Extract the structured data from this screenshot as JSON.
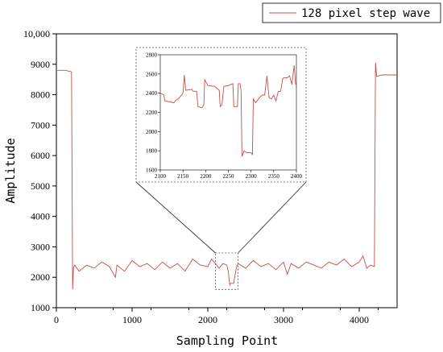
{
  "chart_data": {
    "type": "line",
    "title": "",
    "xlabel": "Sampling Point",
    "ylabel": "Amplitude",
    "xlim": [
      0,
      4500
    ],
    "ylim": [
      1000,
      10000
    ],
    "x_ticks": [
      0,
      1000,
      2000,
      3000,
      4000
    ],
    "x_tick_labels": [
      "0",
      "1000",
      "2000",
      "3000",
      "4000"
    ],
    "y_ticks": [
      1000,
      2000,
      3000,
      4000,
      5000,
      6000,
      7000,
      8000,
      9000,
      10000
    ],
    "y_tick_labels": [
      "1000",
      "2000",
      "3000",
      "4000",
      "5000",
      "6000",
      "7000",
      "8000",
      "9000",
      "10,000"
    ],
    "grid": false,
    "legend_position": "top-right",
    "series": [
      {
        "name": "128 pixel step wave",
        "color": "#c0504d",
        "x": [
          0,
          120,
          200,
          215,
          225,
          240,
          300,
          400,
          500,
          600,
          700,
          780,
          800,
          900,
          1000,
          1100,
          1200,
          1300,
          1400,
          1500,
          1600,
          1700,
          1800,
          1900,
          2000,
          2050,
          2100,
          2150,
          2200,
          2250,
          2270,
          2290,
          2300,
          2340,
          2380,
          2400,
          2500,
          2600,
          2700,
          2800,
          2900,
          3000,
          3050,
          3100,
          3200,
          3300,
          3400,
          3500,
          3600,
          3700,
          3800,
          3900,
          4000,
          4050,
          4100,
          4150,
          4200,
          4215,
          4230,
          4300,
          4400,
          4500
        ],
        "y": [
          8800,
          8800,
          8750,
          1600,
          2300,
          2400,
          2200,
          2400,
          2300,
          2500,
          2350,
          2000,
          2400,
          2200,
          2550,
          2350,
          2450,
          2250,
          2500,
          2300,
          2450,
          2200,
          2600,
          2400,
          2350,
          2600,
          2450,
          2300,
          2450,
          2400,
          2200,
          1750,
          1800,
          1800,
          2350,
          2450,
          2300,
          2550,
          2350,
          2450,
          2250,
          2500,
          2100,
          2450,
          2300,
          2500,
          2400,
          2300,
          2500,
          2400,
          2600,
          2350,
          2500,
          2700,
          2300,
          2400,
          2350,
          9050,
          8600,
          8650,
          8650,
          8650
        ]
      }
    ],
    "inset": {
      "type": "line",
      "xlim": [
        2100,
        2400
      ],
      "ylim": [
        1600,
        2800
      ],
      "x_ticks": [
        2100,
        2150,
        2200,
        2250,
        2300,
        2350,
        2400
      ],
      "x_tick_labels": [
        "2100",
        "2150",
        "2200",
        "2250",
        "2300",
        "2350",
        "2400"
      ],
      "y_ticks": [
        1600,
        1800,
        2000,
        2200,
        2400,
        2600,
        2800
      ],
      "y_tick_labels": [
        "1600",
        "1800",
        "2000",
        "2200",
        "2400",
        "2600",
        "2800"
      ],
      "series": [
        {
          "name": "128 pixel step wave",
          "x": [
            2100,
            2108,
            2110,
            2130,
            2135,
            2140,
            2150,
            2153,
            2156,
            2170,
            2172,
            2180,
            2183,
            2190,
            2192,
            2196,
            2198,
            2205,
            2220,
            2230,
            2232,
            2236,
            2240,
            2250,
            2260,
            2262,
            2270,
            2272,
            2276,
            2278,
            2280,
            2285,
            2290,
            2300,
            2303,
            2305,
            2310,
            2320,
            2325,
            2330,
            2335,
            2340,
            2345,
            2350,
            2355,
            2360,
            2365,
            2370,
            2373,
            2380,
            2385,
            2390,
            2395,
            2398,
            2400
          ],
          "y": [
            2400,
            2380,
            2320,
            2300,
            2330,
            2340,
            2400,
            2590,
            2430,
            2440,
            2420,
            2420,
            2260,
            2250,
            2250,
            2280,
            2540,
            2480,
            2470,
            2430,
            2260,
            2280,
            2470,
            2480,
            2500,
            2260,
            2260,
            2500,
            2500,
            2420,
            1740,
            1800,
            1780,
            1780,
            1760,
            2340,
            2300,
            2360,
            2380,
            2380,
            2580,
            2350,
            2340,
            2380,
            2320,
            2420,
            2420,
            2550,
            2560,
            2560,
            2580,
            2490,
            2690,
            2500,
            2480
          ]
        }
      ]
    }
  }
}
